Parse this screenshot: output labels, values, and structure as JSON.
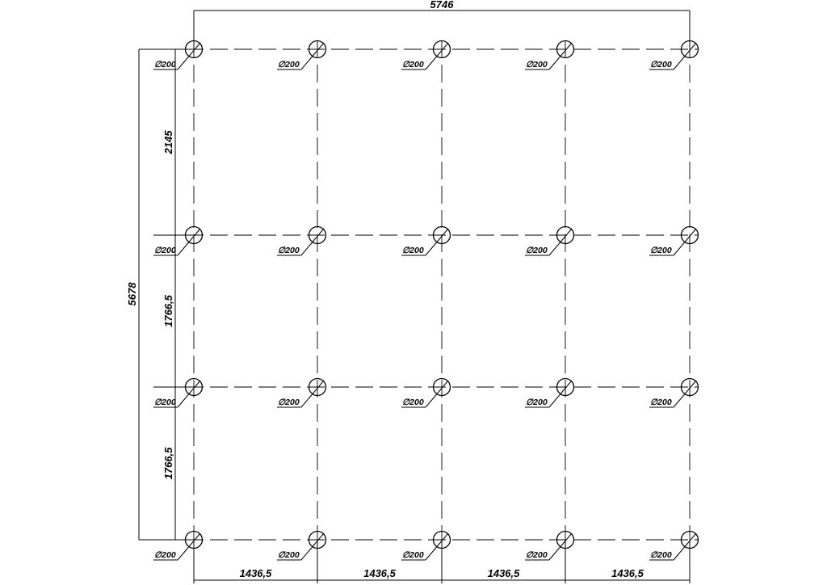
{
  "drawing": {
    "overall_width_label": "5746",
    "overall_height_label": "5678",
    "column_spacing_labels": [
      "1436,5",
      "1436,5",
      "1436,5",
      "1436,5"
    ],
    "row_spacing_labels": [
      "2145",
      "1766,5",
      "1766,5"
    ],
    "column_count": 5,
    "row_count": 4,
    "pile_label": "∅200",
    "line_color": "#000000"
  }
}
